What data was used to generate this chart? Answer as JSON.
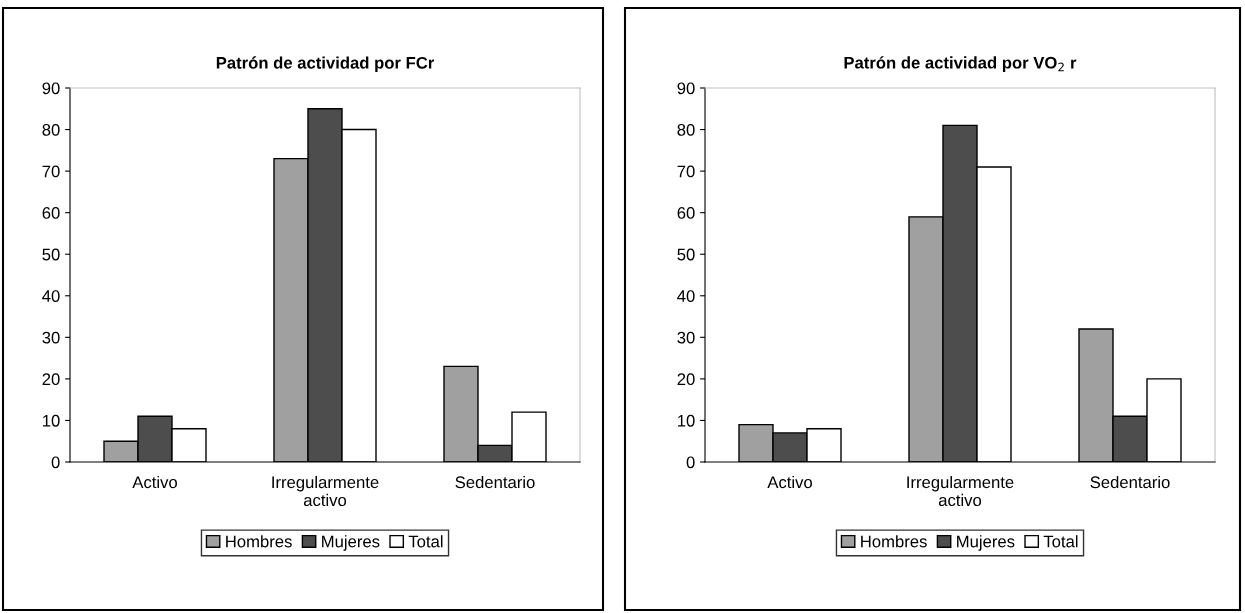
{
  "chart_data": [
    {
      "type": "bar",
      "title": "Patrón de actividad por FCr",
      "categories": [
        "Activo",
        "Irregularmente\nactivo",
        "Sedentario"
      ],
      "series": [
        {
          "name": "Hombres",
          "color": "#a0a0a0",
          "values": [
            5,
            73,
            23
          ]
        },
        {
          "name": "Mujeres",
          "color": "#4d4d4d",
          "values": [
            11,
            85,
            4
          ]
        },
        {
          "name": "Total",
          "color": "#ffffff",
          "values": [
            8,
            80,
            12
          ]
        }
      ],
      "ylim": [
        0,
        90
      ],
      "yticks": [
        0,
        10,
        20,
        30,
        40,
        50,
        60,
        70,
        80,
        90
      ],
      "grid": false,
      "legend": "bottom"
    },
    {
      "type": "bar",
      "title": "Patrón de actividad por VO$_{2}$ r",
      "categories": [
        "Activo",
        "Irregularmente\nactivo",
        "Sedentario"
      ],
      "series": [
        {
          "name": "Hombres",
          "color": "#a0a0a0",
          "values": [
            9,
            59,
            32
          ]
        },
        {
          "name": "Mujeres",
          "color": "#4d4d4d",
          "values": [
            7,
            81,
            11
          ]
        },
        {
          "name": "Total",
          "color": "#ffffff",
          "values": [
            8,
            71,
            20
          ]
        }
      ],
      "ylim": [
        0,
        90
      ],
      "yticks": [
        0,
        10,
        20,
        30,
        40,
        50,
        60,
        70,
        80,
        90
      ],
      "grid": false,
      "legend": "bottom"
    }
  ]
}
